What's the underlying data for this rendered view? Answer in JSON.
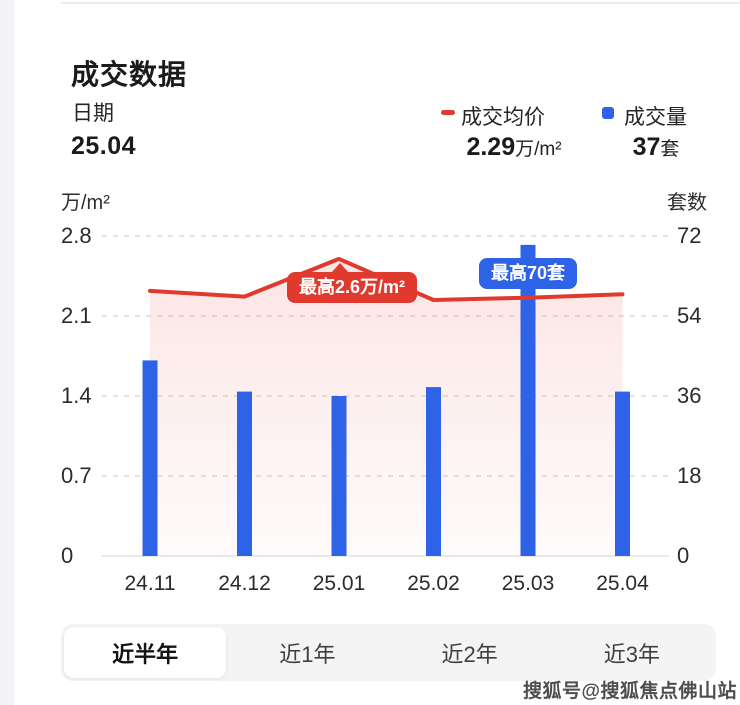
{
  "header": {
    "title": "成交数据",
    "date_label": "日期",
    "date_value": "25.04",
    "price_legend": "成交均价",
    "price_value": "2.29",
    "price_unit": "万/m²",
    "volume_legend": "成交量",
    "volume_value": "37",
    "volume_unit": "套",
    "price_color": "#e0392e",
    "volume_color": "#2e63e8"
  },
  "chart_data": {
    "type": "bar",
    "subtype": "dual-axis bar + line",
    "categories": [
      "24.11",
      "24.12",
      "25.01",
      "25.02",
      "25.03",
      "25.04"
    ],
    "series": [
      {
        "name": "成交均价",
        "type": "line",
        "axis": "left",
        "unit": "万/m²",
        "color": "#e0392e",
        "values": [
          2.32,
          2.27,
          2.6,
          2.24,
          2.26,
          2.29
        ]
      },
      {
        "name": "成交量",
        "type": "bar",
        "axis": "right",
        "unit": "套",
        "color": "#2e63e8",
        "values": [
          44,
          37,
          36,
          38,
          70,
          37
        ]
      }
    ],
    "left_axis": {
      "label": "万/m²",
      "ticks": [
        "2.8",
        "2.1",
        "1.4",
        "0.7",
        "0"
      ],
      "max": 2.8,
      "min": 0
    },
    "right_axis": {
      "label": "套数",
      "ticks": [
        "72",
        "54",
        "36",
        "18",
        "0"
      ],
      "max": 72,
      "min": 0
    },
    "annotations": [
      {
        "text": "最高2.6万/m²",
        "target": "25.01",
        "color": "#e0392e"
      },
      {
        "text": "最高70套",
        "target": "25.03",
        "color": "#2e63e8"
      }
    ],
    "grid": "dashed horizontal lines, solid baseline",
    "legend_position": "top-right",
    "area_fill": "pink gradient under price line"
  },
  "tabs": [
    {
      "label": "近半年",
      "selected": true
    },
    {
      "label": "近1年",
      "selected": false
    },
    {
      "label": "近2年",
      "selected": false
    },
    {
      "label": "近3年",
      "selected": false
    }
  ],
  "watermark": "搜狐号@搜狐焦点佛山站"
}
